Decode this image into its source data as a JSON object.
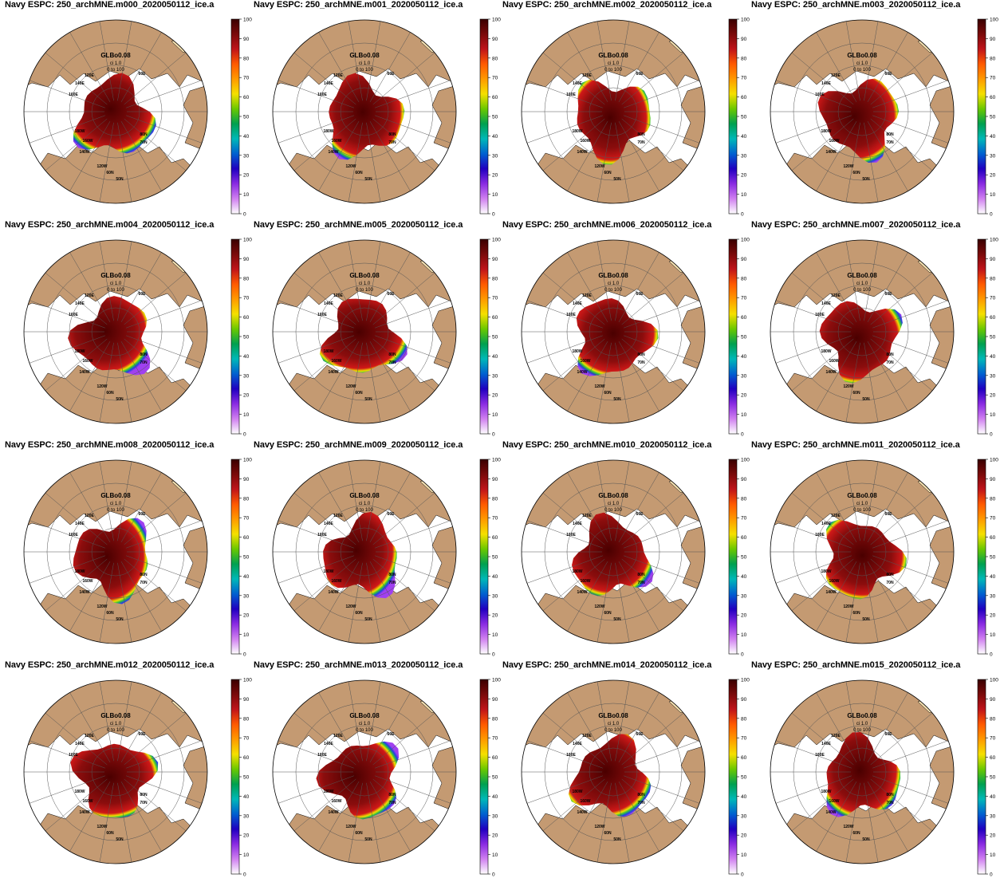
{
  "panels": [
    {
      "title": "Navy ESPC: 250_archMNE.m000_2020050112_ice.a",
      "map_label": "GLBo0.08",
      "ci_label": "ci 1.0",
      "range_label": "0 to 100"
    },
    {
      "title": "Navy ESPC: 250_archMNE.m001_2020050112_ice.a",
      "map_label": "GLBo0.08",
      "ci_label": "ci 1.0",
      "range_label": "0 to 100"
    },
    {
      "title": "Navy ESPC: 250_archMNE.m002_2020050112_ice.a",
      "map_label": "GLBo0.08",
      "ci_label": "ci 1.0",
      "range_label": "0 to 100"
    },
    {
      "title": "Navy ESPC: 250_archMNE.m003_2020050112_ice.a",
      "map_label": "GLBo0.08",
      "ci_label": "ci 1.0",
      "range_label": "0 to 100"
    },
    {
      "title": "Navy ESPC: 250_archMNE.m004_2020050112_ice.a",
      "map_label": "GLBo0.08",
      "ci_label": "ci 1.0",
      "range_label": "0 to 100"
    },
    {
      "title": "Navy ESPC: 250_archMNE.m005_2020050112_ice.a",
      "map_label": "GLBo0.08",
      "ci_label": "ci 1.0",
      "range_label": "0 to 100"
    },
    {
      "title": "Navy ESPC: 250_archMNE.m006_2020050112_ice.a",
      "map_label": "GLBo0.08",
      "ci_label": "ci 1.0",
      "range_label": "0 to 100"
    },
    {
      "title": "Navy ESPC: 250_archMNE.m007_2020050112_ice.a",
      "map_label": "GLBo0.08",
      "ci_label": "ci 1.0",
      "range_label": "0 to 100"
    },
    {
      "title": "Navy ESPC: 250_archMNE.m008_2020050112_ice.a",
      "map_label": "GLBo0.08",
      "ci_label": "ci 1.0",
      "range_label": "0 to 100"
    },
    {
      "title": "Navy ESPC: 250_archMNE.m009_2020050112_ice.a",
      "map_label": "GLBo0.08",
      "ci_label": "ci 1.0",
      "range_label": "0 to 100"
    },
    {
      "title": "Navy ESPC: 250_archMNE.m010_2020050112_ice.a",
      "map_label": "GLBo0.08",
      "ci_label": "ci 1.0",
      "range_label": "0 to 100"
    },
    {
      "title": "Navy ESPC: 250_archMNE.m011_2020050112_ice.a",
      "map_label": "GLBo0.08",
      "ci_label": "ci 1.0",
      "range_label": "0 to 100"
    },
    {
      "title": "Navy ESPC: 250_archMNE.m012_2020050112_ice.a",
      "map_label": "GLBo0.08",
      "ci_label": "ci 1.0",
      "range_label": "0 to 100"
    },
    {
      "title": "Navy ESPC: 250_archMNE.m013_2020050112_ice.a",
      "map_label": "GLBo0.08",
      "ci_label": "ci 1.0",
      "range_label": "0 to 100"
    },
    {
      "title": "Navy ESPC: 250_archMNE.m014_2020050112_ice.a",
      "map_label": "GLBo0.08",
      "ci_label": "ci 1.0",
      "range_label": "0 to 100"
    },
    {
      "title": "Navy ESPC: 250_archMNE.m015_2020050112_ice.a",
      "map_label": "GLBo0.08",
      "ci_label": "ci 1.0",
      "range_label": "0 to 100"
    }
  ],
  "map_labels": [
    "120E",
    "140E",
    "160E",
    "180W",
    "160W",
    "140W",
    "120W",
    "60E",
    "80N",
    "70N",
    "60N",
    "50N"
  ],
  "colorbar": {
    "ticks": [
      "100",
      "90",
      "80",
      "70",
      "60",
      "50",
      "40",
      "30",
      "20",
      "10",
      "0"
    ],
    "stops": [
      "#3a0000",
      "#7a0a0a",
      "#c0141a",
      "#ff5a00",
      "#ff9a00",
      "#f5e000",
      "#6ac800",
      "#00a050",
      "#00b8b8",
      "#0060d0",
      "#2000c0",
      "#8a2be2",
      "#d080f0",
      "#ffffff"
    ]
  },
  "colors": {
    "land": "#c49a72",
    "ocean": "#ffffff",
    "ice_core": "#4a0000",
    "ice_mid": "#8b0d0d",
    "ice_edge_red": "#d01818",
    "ice_edge_yellow": "#f0e000",
    "ice_edge_green": "#30c040",
    "ice_edge_blue": "#2040e0",
    "ice_edge_purple": "#a040f0",
    "greenland": "#f5e0b0"
  }
}
